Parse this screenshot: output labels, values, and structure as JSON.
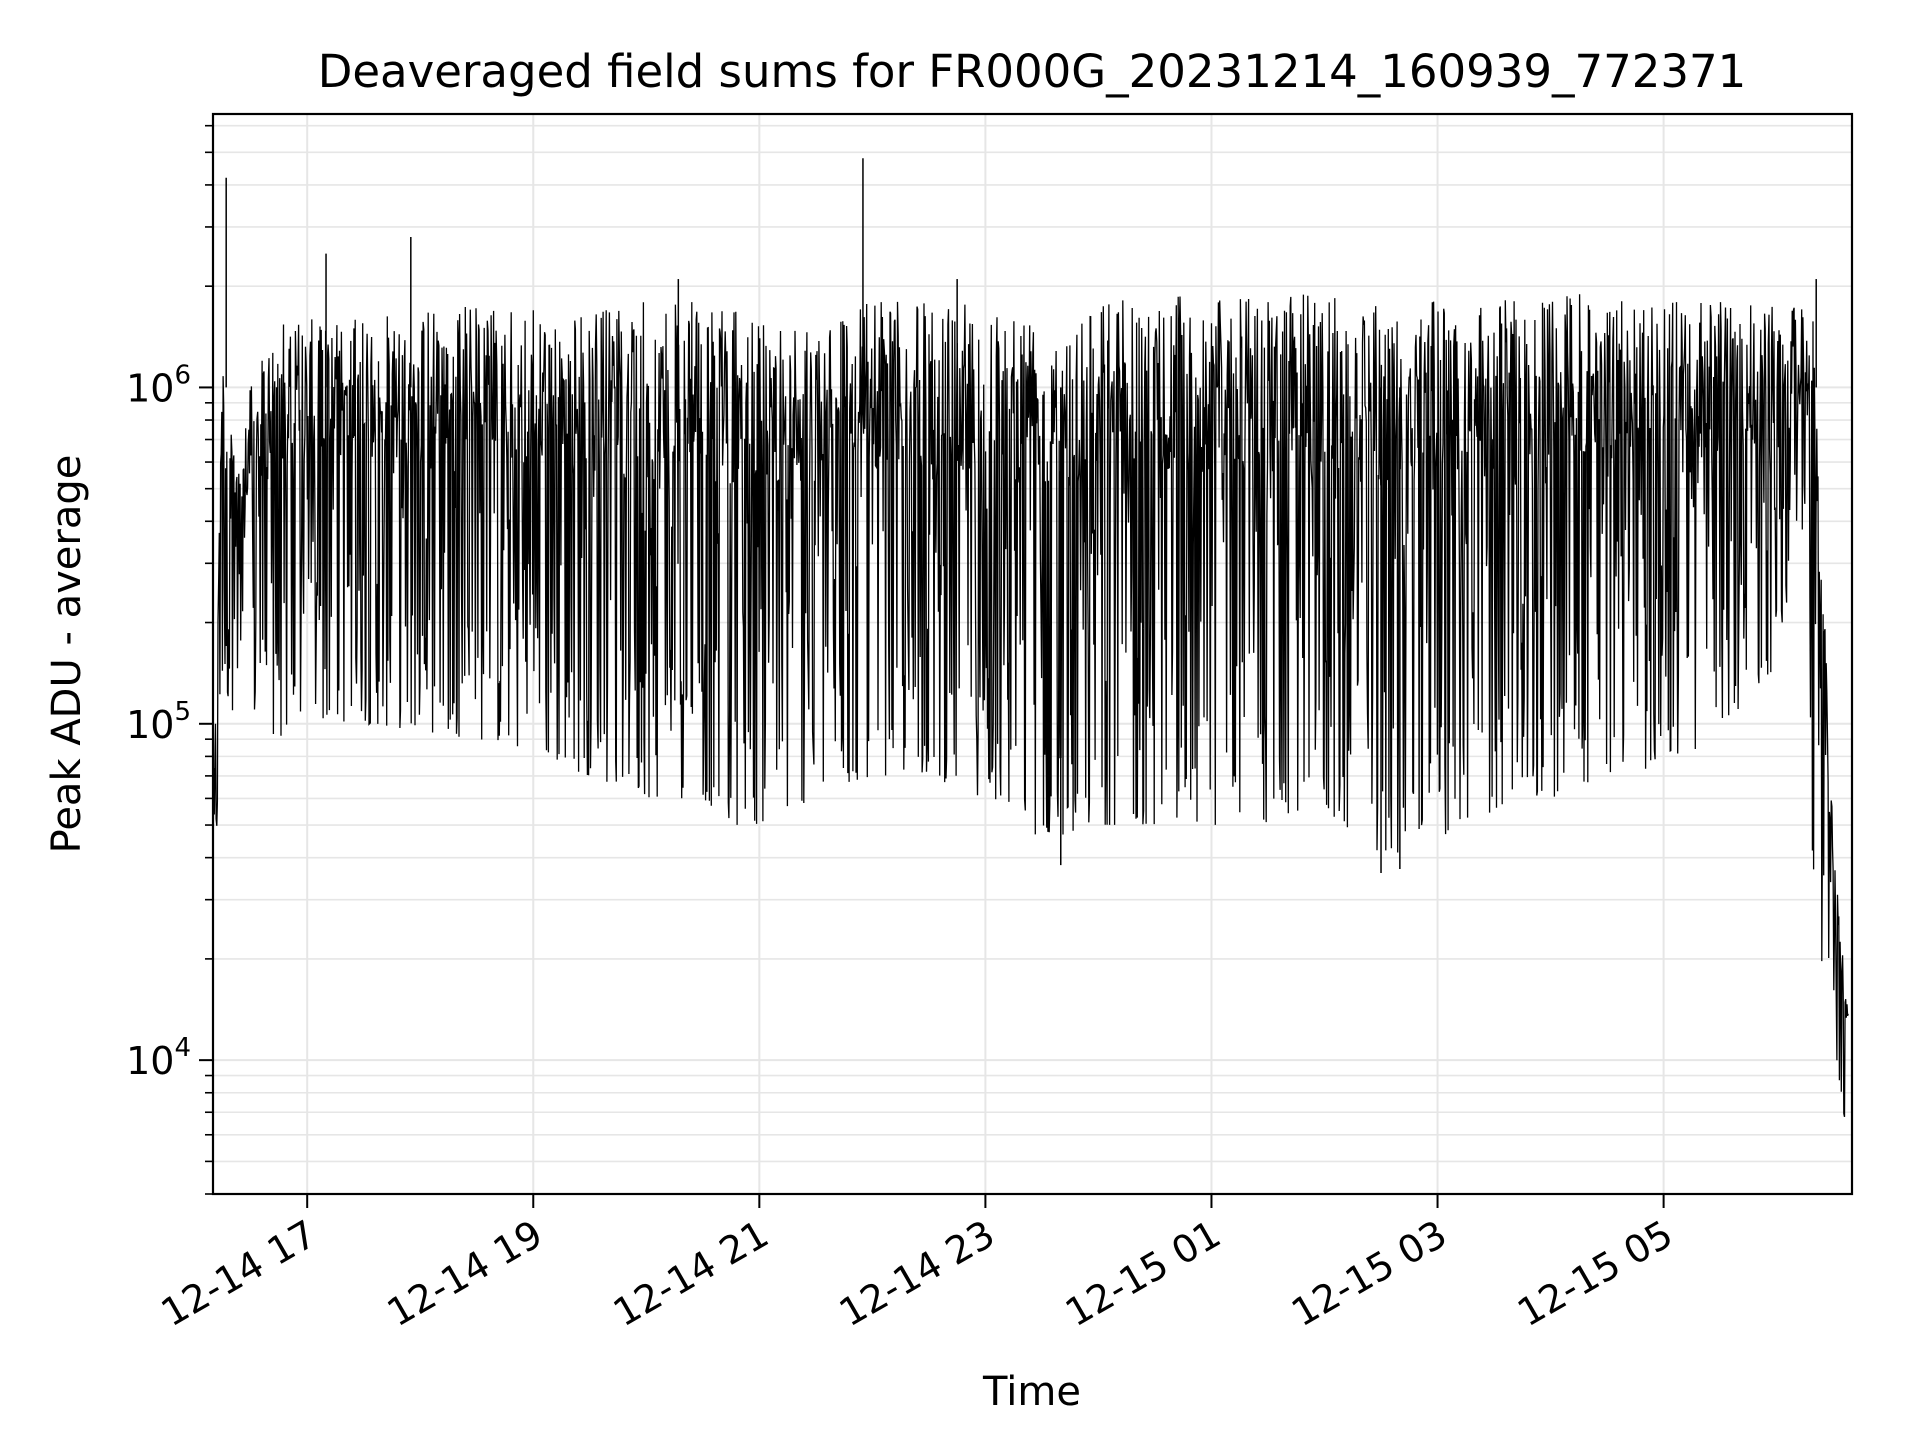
{
  "chart_data": {
    "type": "line",
    "title": "Deaveraged field sums for FR000G_20231214_160939_772371",
    "xlabel": "Time",
    "ylabel": "Peak ADU - average",
    "y_scale": "log",
    "ylim": [
      4000,
      6500000
    ],
    "xlim": [
      "2023-12-14 16:10",
      "2023-12-15 06:40"
    ],
    "grid": true,
    "line_color": "#000000",
    "x_ticks": [
      {
        "label": "12-14 17",
        "value": "2023-12-14 17:00"
      },
      {
        "label": "12-14 19",
        "value": "2023-12-14 19:00"
      },
      {
        "label": "12-14 21",
        "value": "2023-12-14 21:00"
      },
      {
        "label": "12-14 23",
        "value": "2023-12-14 23:00"
      },
      {
        "label": "12-15 01",
        "value": "2023-12-15 01:00"
      },
      {
        "label": "12-15 03",
        "value": "2023-12-15 03:00"
      },
      {
        "label": "12-15 05",
        "value": "2023-12-15 05:00"
      }
    ],
    "y_ticks": [
      {
        "base": "10",
        "exp": "4",
        "value": 10000
      },
      {
        "base": "10",
        "exp": "5",
        "value": 100000
      },
      {
        "base": "10",
        "exp": "6",
        "value": 1000000
      }
    ],
    "envelope": {
      "description": "dense noisy series; per time point approximate upper and lower range",
      "x": [
        "2023-12-14 16:10",
        "2023-12-14 16:15",
        "2023-12-14 16:20",
        "2023-12-14 16:30",
        "2023-12-14 16:45",
        "2023-12-14 17:00",
        "2023-12-14 17:30",
        "2023-12-14 18:00",
        "2023-12-14 18:30",
        "2023-12-14 19:00",
        "2023-12-14 19:30",
        "2023-12-14 20:00",
        "2023-12-14 20:30",
        "2023-12-14 20:45",
        "2023-12-14 21:00",
        "2023-12-14 21:30",
        "2023-12-14 22:00",
        "2023-12-14 22:30",
        "2023-12-14 23:00",
        "2023-12-14 23:30",
        "2023-12-15 00:00",
        "2023-12-15 00:30",
        "2023-12-15 01:00",
        "2023-12-15 01:30",
        "2023-12-15 02:00",
        "2023-12-15 02:30",
        "2023-12-15 03:00",
        "2023-12-15 03:30",
        "2023-12-15 04:00",
        "2023-12-15 04:30",
        "2023-12-15 05:00",
        "2023-12-15 05:30",
        "2023-12-15 06:00",
        "2023-12-15 06:15",
        "2023-12-15 06:20",
        "2023-12-15 06:30",
        "2023-12-15 06:38"
      ],
      "high": [
        60000,
        1500000,
        700000,
        1000000,
        1600000,
        1600000,
        1600000,
        1700000,
        1800000,
        1700000,
        1700000,
        1800000,
        1800000,
        1700000,
        1600000,
        1700000,
        1800000,
        1800000,
        1800000,
        1800000,
        1900000,
        1900000,
        1900000,
        1900000,
        1900000,
        1900000,
        1800000,
        1800000,
        1900000,
        1900000,
        1800000,
        1800000,
        1800000,
        1700000,
        1700000,
        45000,
        15000
      ],
      "low": [
        22000,
        120000,
        110000,
        100000,
        90000,
        100000,
        100000,
        95000,
        90000,
        80000,
        70000,
        60000,
        60000,
        50000,
        50000,
        60000,
        70000,
        70000,
        60000,
        45000,
        50000,
        50000,
        50000,
        50000,
        55000,
        40000,
        45000,
        55000,
        60000,
        70000,
        75000,
        90000,
        150000,
        400000,
        20000,
        12000,
        5500
      ]
    },
    "spikes": [
      {
        "x": "2023-12-14 16:17",
        "y": 4200000
      },
      {
        "x": "2023-12-14 17:10",
        "y": 2500000
      },
      {
        "x": "2023-12-14 17:55",
        "y": 2800000
      },
      {
        "x": "2023-12-14 20:17",
        "y": 2100000
      },
      {
        "x": "2023-12-14 21:55",
        "y": 4800000
      },
      {
        "x": "2023-12-14 22:45",
        "y": 2100000
      },
      {
        "x": "2023-12-15 06:21",
        "y": 2100000
      }
    ],
    "dips": [
      {
        "x": "2023-12-14 23:40",
        "y": 38000
      },
      {
        "x": "2023-12-15 02:30",
        "y": 36000
      },
      {
        "x": "2023-12-15 02:40",
        "y": 37000
      }
    ]
  }
}
